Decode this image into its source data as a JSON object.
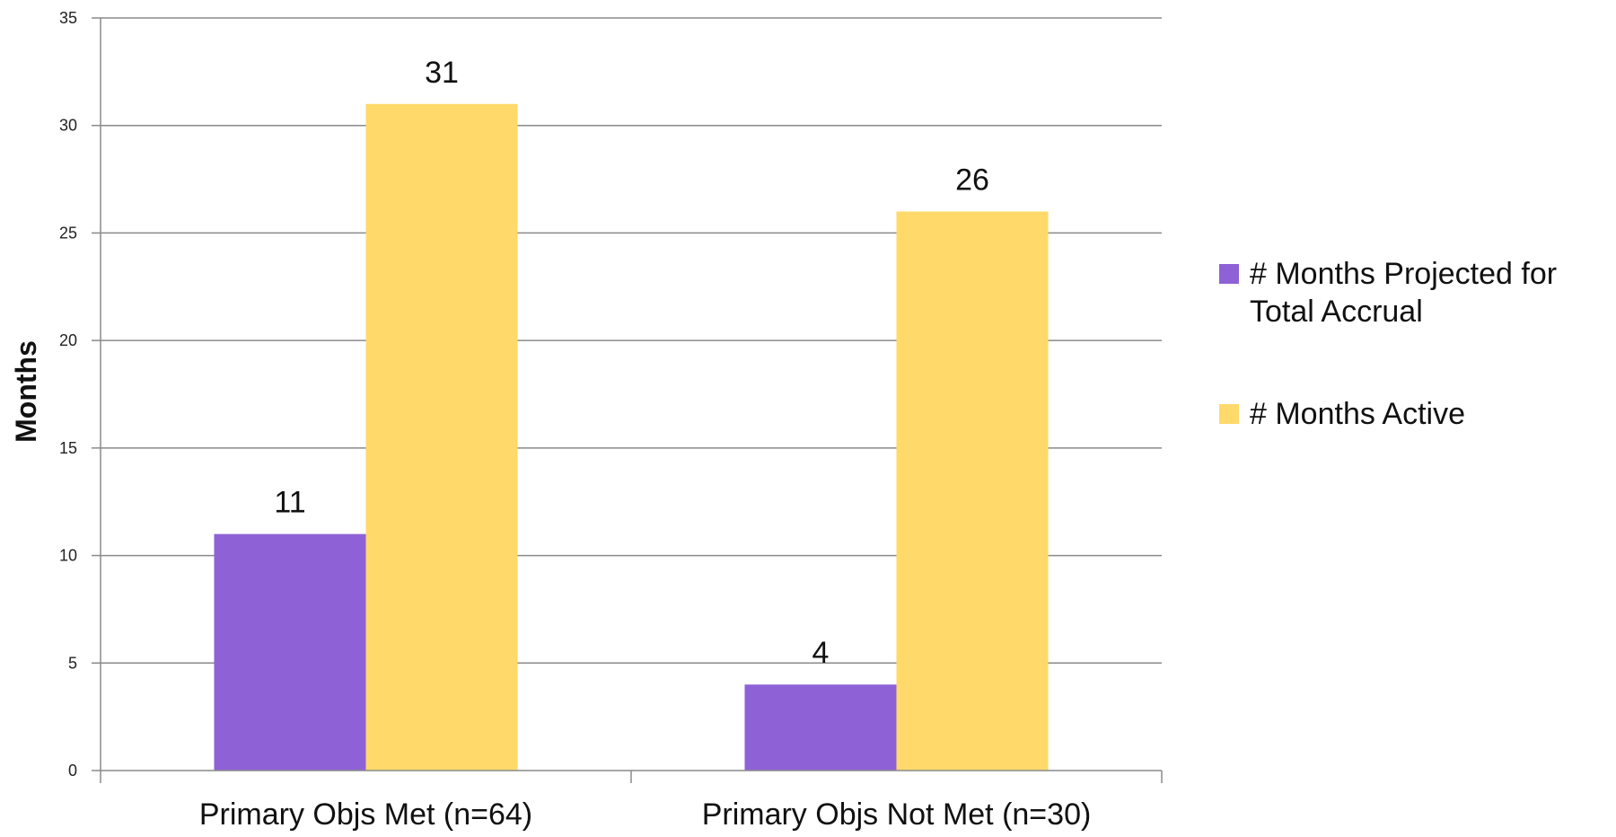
{
  "chart_data": {
    "type": "bar",
    "categories": [
      "Primary Objs Met (n=64)",
      "Primary Objs Not Met (n=30)"
    ],
    "series": [
      {
        "name": "# Months Projected for Total Accrual",
        "values": [
          11,
          4
        ],
        "color": "#8E62D6"
      },
      {
        "name": "# Months Active",
        "values": [
          31,
          26
        ],
        "color": "#FFD96A"
      }
    ],
    "ylabel": "Months",
    "ylim": [
      0,
      35
    ],
    "yticks": [
      0,
      5,
      10,
      15,
      20,
      25,
      30,
      35
    ],
    "grid": true,
    "legend_position": "right",
    "data_labels": true
  }
}
